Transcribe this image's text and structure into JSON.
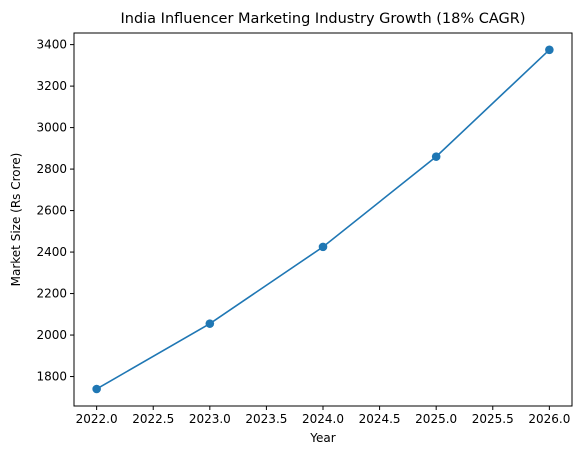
{
  "chart_data": {
    "type": "line",
    "title": "India Influencer Marketing Industry Growth (18% CAGR)",
    "xlabel": "Year",
    "ylabel": "Market Size (Rs Crore)",
    "xlim": [
      2021.8,
      2026.2
    ],
    "ylim": [
      1658,
      3456
    ],
    "x_ticks": [
      2022.0,
      2022.5,
      2023.0,
      2023.5,
      2024.0,
      2024.5,
      2025.0,
      2025.5,
      2026.0
    ],
    "x_tick_labels": [
      "2022.0",
      "2022.5",
      "2023.0",
      "2023.5",
      "2024.0",
      "2024.5",
      "2025.0",
      "2025.5",
      "2026.0"
    ],
    "y_ticks": [
      1800,
      2000,
      2200,
      2400,
      2600,
      2800,
      3000,
      3200,
      3400
    ],
    "y_tick_labels": [
      "1800",
      "2000",
      "2200",
      "2400",
      "2600",
      "2800",
      "3000",
      "3200",
      "3400"
    ],
    "grid": false,
    "series": [
      {
        "x": [
          2022,
          2023,
          2024,
          2025,
          2026
        ],
        "values": [
          1740,
          2055,
          2425,
          2860,
          3375
        ],
        "color": "#1f77b4",
        "marker": "circle"
      }
    ]
  }
}
